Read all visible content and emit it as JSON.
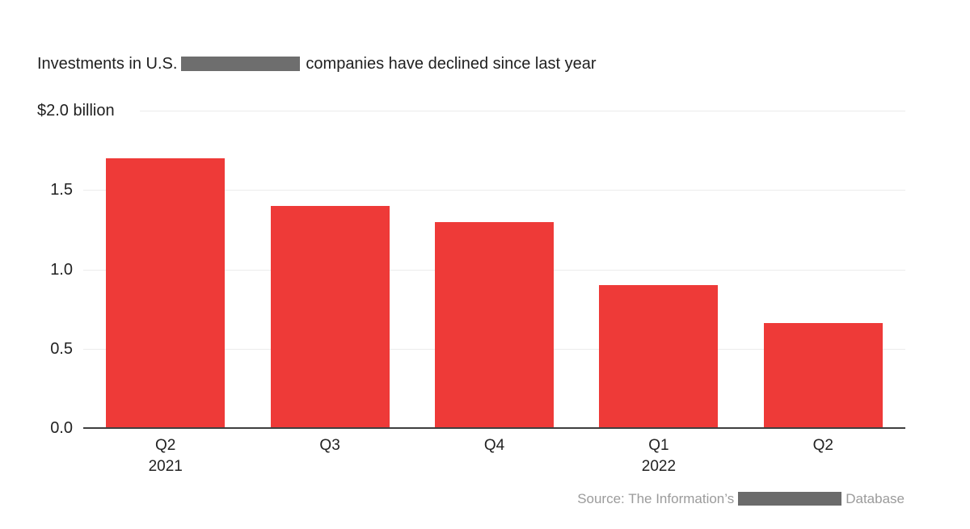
{
  "title": {
    "prefix": "Investments in U.S.",
    "redacted_segment": "[redacted]",
    "suffix": "companies have declined since last year"
  },
  "chart_data": {
    "type": "bar",
    "title": "Investments in U.S. [redacted] companies have declined since last year",
    "unit": "billions of U.S. dollars",
    "y_top_label": "$2.0 billion",
    "categories": [
      {
        "quarter": "Q2",
        "year": "2021"
      },
      {
        "quarter": "Q3",
        "year": ""
      },
      {
        "quarter": "Q4",
        "year": ""
      },
      {
        "quarter": "Q1",
        "year": "2022"
      },
      {
        "quarter": "Q2",
        "year": ""
      }
    ],
    "values": [
      1.7,
      1.4,
      1.3,
      0.9,
      0.66
    ],
    "ylim": [
      0,
      2.0
    ],
    "ytick_values": [
      1.5,
      1.0,
      0.5,
      0.0
    ],
    "gridline_values": [
      2.0,
      1.5,
      1.0,
      0.5
    ],
    "grid": true,
    "legend": "none",
    "bar_color": "#ee3a38"
  },
  "source": {
    "prefix": "Source: The Information’s",
    "redacted_segment": "[redacted]",
    "suffix": "Database"
  },
  "colors": {
    "background": "#ffffff",
    "bar": "#ee3a38",
    "title_text": "#1f1f1f",
    "axis_text": "#222222",
    "gridline": "#ececec",
    "axis_line": "#3f3f3f",
    "source_text": "#9b9b9b",
    "redaction_box": "#6e6e6e"
  }
}
